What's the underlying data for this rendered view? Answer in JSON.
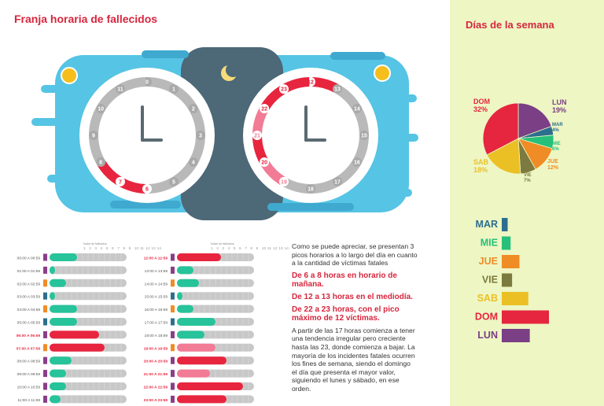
{
  "header": {
    "left_title": "Franja horaria de fallecidos",
    "right_title": "Días de la semana"
  },
  "colors": {
    "red": "#e8253e",
    "pink": "#f27b95",
    "teal": "#27c39a",
    "gray": "#c8c8c8",
    "panel": "#eef6c4",
    "sky": "#56c4e4",
    "night": "#4d6877",
    "sun": "#f6be1c"
  },
  "text": {
    "intro": "Como se puede apreciar, se presentan 3 picos horarios a lo largo del día en cuanto a la cantidad de víctimas fatales",
    "peak1": "De 6 a 8 horas en horario de mañana.",
    "peak2": "De 12 a 13 horas en el mediodía.",
    "peak3": "De 22 a 23 horas, con el pico máximo de 12 víctimas.",
    "outro": "A partir de las 17 horas comienza a tener una tendencia irregular pero creciente hasta las 23, donde comienza a bajar. La mayoría de los incidentes fatales ocurren los fines de semana, siendo el domingo el día que presenta el mayor valor, siguiendo el lunes y sábado, en ese orden."
  },
  "scale_label": "Índice de fallecidos",
  "scale_ticks": [
    "1",
    "2",
    "3",
    "4",
    "5",
    "6",
    "7",
    "8",
    "9",
    "10",
    "11",
    "12",
    "13",
    "14"
  ],
  "clock_am_numbers": [
    "0",
    "1",
    "2",
    "3",
    "4",
    "5",
    "6",
    "7",
    "8",
    "9",
    "10",
    "11"
  ],
  "clock_pm_numbers": [
    "12",
    "13",
    "14",
    "15",
    "16",
    "17",
    "18",
    "19",
    "20",
    "21",
    "22",
    "23"
  ],
  "chart_data": [
    {
      "type": "bar",
      "title": "Franja horaria de fallecidos",
      "xlim": [
        0,
        14
      ],
      "categories": [
        "00:00 A 00:59",
        "01:00 A 01:59",
        "02:00 A 02:59",
        "03:00 A 03:59",
        "04:00 A 04:59",
        "05:00 A 05:59",
        "06:00 A 06:59",
        "07:00 A 07:59",
        "08:00 A 08:59",
        "09:00 A 09:59",
        "10:00 A 10:59",
        "11:00 A 11:59",
        "12:00 A 12:59",
        "13:00 A 13:59",
        "14:00 A 14:59",
        "15:00 A 15:59",
        "16:00 A 16:59",
        "17:00 A 17:59",
        "18:00 A 18:59",
        "19:00 A 19:59",
        "20:00 A 20:59",
        "21:00 A 21:59",
        "22:00 A 22:59",
        "23:00 A 23:59"
      ],
      "values": [
        5,
        1,
        3,
        1,
        5,
        5,
        9,
        10,
        4,
        3,
        3,
        2,
        8,
        3,
        4,
        1,
        3,
        7,
        5,
        7,
        9,
        6,
        12,
        9
      ],
      "bar_colors": [
        "teal",
        "teal",
        "teal",
        "teal",
        "teal",
        "teal",
        "red",
        "red",
        "teal",
        "teal",
        "teal",
        "teal",
        "red",
        "teal",
        "teal",
        "teal",
        "teal",
        "teal",
        "teal",
        "pink",
        "red",
        "pink",
        "red",
        "red"
      ],
      "highlight_labels": [
        "06:00 A 06:59",
        "07:00 A 07:59",
        "12:00 A 12:59",
        "19:00 A 19:59",
        "20:00 A 20:59",
        "21:00 A 21:59",
        "22:00 A 22:59",
        "23:00 A 23:59"
      ]
    },
    {
      "type": "pie",
      "title": "Días de la semana",
      "labels": [
        "LUN",
        "MAR",
        "MIE",
        "JUE",
        "VIE",
        "SAB",
        "DOM"
      ],
      "values": [
        19,
        4,
        6,
        12,
        7,
        18,
        32
      ],
      "value_labels": [
        "19%",
        "4%",
        "6%",
        "12%",
        "7%",
        "18%",
        "32%"
      ],
      "colors": [
        "#7a3f84",
        "#2c6e8e",
        "#26c07a",
        "#f08c25",
        "#7c7a3e",
        "#ebc025",
        "#e6253f"
      ]
    },
    {
      "type": "bar",
      "title": "",
      "categories": [
        "MAR",
        "MIE",
        "JUE",
        "VIE",
        "SAB",
        "DOM",
        "LUN"
      ],
      "values": [
        4,
        6,
        12,
        7,
        18,
        32,
        19
      ],
      "colors": [
        "#2c6e8e",
        "#26c07a",
        "#f08c25",
        "#7c7a3e",
        "#ebc025",
        "#e6253f",
        "#7a3f84"
      ]
    }
  ]
}
